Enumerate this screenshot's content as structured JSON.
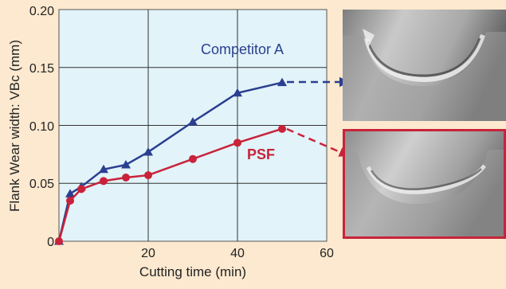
{
  "chart_data": {
    "type": "line",
    "xlabel": "Cutting time (min)",
    "ylabel": "Flank Wear width: VBc (mm)",
    "xlim": [
      0,
      60
    ],
    "ylim": [
      0,
      0.2
    ],
    "x_ticks": [
      "20",
      "40",
      "60"
    ],
    "y_ticks": [
      "0",
      "0.05",
      "0.10",
      "0.15",
      "0.20"
    ],
    "grid": true,
    "series": [
      {
        "name": "Competitor A",
        "color": "#2a3f8f",
        "marker": "triangle",
        "x": [
          0,
          2.5,
          5,
          10,
          15,
          20,
          30,
          40,
          50
        ],
        "y": [
          0.0,
          0.041,
          0.047,
          0.062,
          0.066,
          0.077,
          0.103,
          0.128,
          0.137
        ]
      },
      {
        "name": "PSF",
        "color": "#c8233a",
        "marker": "circle",
        "x": [
          0,
          2.5,
          5,
          10,
          15,
          20,
          30,
          40,
          50
        ],
        "y": [
          0.0,
          0.035,
          0.045,
          0.052,
          0.055,
          0.057,
          0.071,
          0.085,
          0.097
        ]
      }
    ]
  },
  "colors": {
    "background": "#fce9cf",
    "plot_area": "#e2f3f9",
    "accent_blue": "#2a3f8f",
    "accent_red": "#c8233a"
  },
  "photos": {
    "top_icon": "tool-wear-photo-competitor",
    "bottom_icon": "tool-wear-photo-psf"
  }
}
